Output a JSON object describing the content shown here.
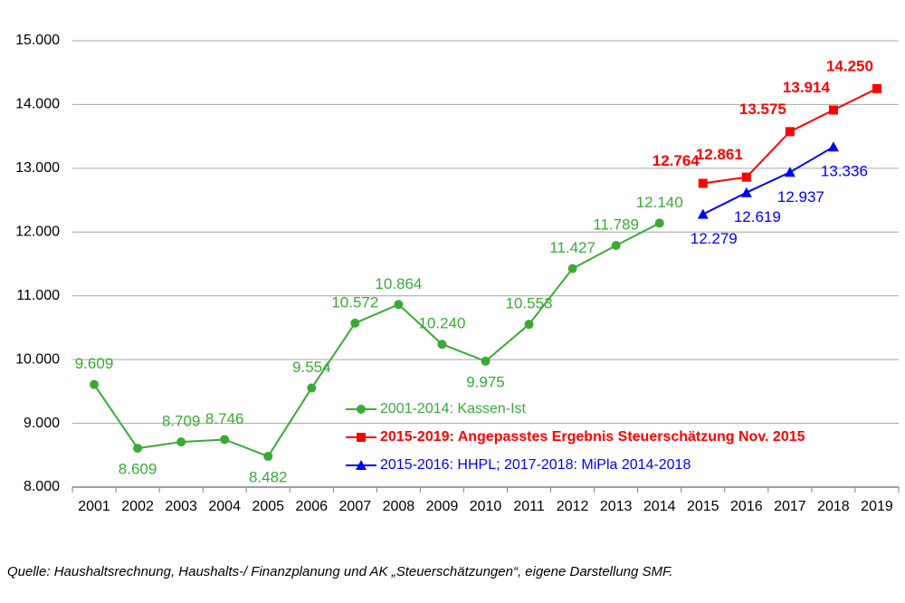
{
  "chart_data": {
    "type": "line",
    "categories": [
      "2001",
      "2002",
      "2003",
      "2004",
      "2005",
      "2006",
      "2007",
      "2008",
      "2009",
      "2010",
      "2011",
      "2012",
      "2013",
      "2014",
      "2015",
      "2016",
      "2017",
      "2018",
      "2019"
    ],
    "ylim": [
      8000,
      15000
    ],
    "yticks": [
      {
        "value": 8000,
        "label": "8.000"
      },
      {
        "value": 9000,
        "label": "9.000"
      },
      {
        "value": 10000,
        "label": "10.000"
      },
      {
        "value": 11000,
        "label": "11.000"
      },
      {
        "value": 12000,
        "label": "12.000"
      },
      {
        "value": 13000,
        "label": "13.000"
      },
      {
        "value": 14000,
        "label": "14.000"
      },
      {
        "value": 15000,
        "label": "15.000"
      }
    ],
    "grid": true,
    "series": [
      {
        "name": "2001-2014: Kassen-Ist",
        "color": "#3aaa35",
        "marker": "circle",
        "values": [
          9609,
          8609,
          8709,
          8746,
          8482,
          9554,
          10572,
          10864,
          10240,
          9975,
          10553,
          11427,
          11789,
          12140,
          null,
          null,
          null,
          null,
          null
        ],
        "value_labels": [
          "9.609",
          "8.609",
          "8.709",
          "8.746",
          "8.482",
          "9.554",
          "10.572",
          "10.864",
          "10.240",
          "9.975",
          "10.553",
          "11.427",
          "11.789",
          "12.140",
          null,
          null,
          null,
          null,
          null
        ]
      },
      {
        "name": "2015-2019: Angepasstes Ergebnis Steuerschätzung Nov. 2015",
        "color": "#ff0000",
        "marker": "square",
        "values": [
          null,
          null,
          null,
          null,
          null,
          null,
          null,
          null,
          null,
          null,
          null,
          null,
          null,
          null,
          12764,
          12861,
          13575,
          13914,
          14250
        ],
        "value_labels": [
          null,
          null,
          null,
          null,
          null,
          null,
          null,
          null,
          null,
          null,
          null,
          null,
          null,
          null,
          "12.764",
          "12.861",
          "13.575",
          "13.914",
          "14.250"
        ]
      },
      {
        "name": "2015-2016: HHPL; 2017-2018: MiPla 2014-2018",
        "color": "#0000ff",
        "marker": "triangle",
        "values": [
          null,
          null,
          null,
          null,
          null,
          null,
          null,
          null,
          null,
          null,
          null,
          null,
          null,
          null,
          12279,
          12619,
          12937,
          13336,
          null
        ],
        "value_labels": [
          null,
          null,
          null,
          null,
          null,
          null,
          null,
          null,
          null,
          null,
          null,
          null,
          null,
          null,
          "12.279",
          "12.619",
          "12.937",
          "13.336",
          null
        ]
      }
    ],
    "source": "Quelle: Haushaltsrechnung, Haushalts-/ Finanzplanung und AK „Steuerschätzungen“, eigene Darstellung SMF."
  }
}
